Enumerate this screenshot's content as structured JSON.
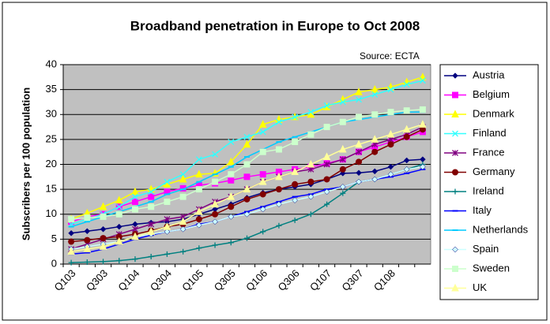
{
  "chart_data": {
    "type": "line",
    "title": "Broadband penetration in Europe to Oct 2008",
    "annotation": "Source: ECTA",
    "y_label": "Subscribers per 100 population",
    "categories": [
      "Q103",
      null,
      "Q303",
      null,
      "Q104",
      null,
      "Q304",
      null,
      "Q105",
      null,
      "Q305",
      null,
      "Q106",
      null,
      "Q306",
      null,
      "Q107",
      null,
      "Q307",
      null,
      "Q108",
      null,
      null
    ],
    "ylim": [
      0,
      40
    ],
    "yticks": [
      0,
      5,
      10,
      15,
      20,
      25,
      30,
      35,
      40
    ],
    "grid": true,
    "legend": "right",
    "series": [
      {
        "name": "Austria",
        "color": "#000080",
        "marker": "diamond",
        "values": [
          6.2,
          6.6,
          7.0,
          7.5,
          8.0,
          8.3,
          8.5,
          9.0,
          10.0,
          11.0,
          12.0,
          13.3,
          14.3,
          15.0,
          15.5,
          16.0,
          17.0,
          18.2,
          18.3,
          18.6,
          19.5,
          20.8,
          21.0
        ]
      },
      {
        "name": "Belgium",
        "color": "#ff00ff",
        "marker": "square",
        "values": [
          8.5,
          9.5,
          10.0,
          11.5,
          12.5,
          13.5,
          14.5,
          15.2,
          15.8,
          16.2,
          16.8,
          17.5,
          18.0,
          18.5,
          19.0,
          19.5,
          20.2,
          21.0,
          22.5,
          23.5,
          24.5,
          25.5,
          26.5
        ]
      },
      {
        "name": "Denmark",
        "color": "#ffff00",
        "marker": "triangle",
        "values": [
          9.0,
          10.2,
          11.5,
          12.8,
          14.5,
          15.0,
          16.0,
          17.0,
          18.0,
          18.2,
          20.5,
          24.0,
          28.0,
          29.0,
          29.5,
          30.0,
          31.5,
          33.0,
          34.5,
          35.0,
          35.5,
          36.5,
          37.5
        ]
      },
      {
        "name": "Finland",
        "color": "#33ffff",
        "marker": "x",
        "values": [
          8.0,
          9.0,
          10.0,
          11.5,
          13.5,
          14.5,
          16.5,
          18.0,
          21.0,
          22.0,
          24.5,
          25.5,
          26.5,
          28.5,
          29.5,
          30.5,
          31.8,
          32.5,
          33.0,
          34.0,
          35.0,
          36.0,
          36.8
        ]
      },
      {
        "name": "France",
        "color": "#800080",
        "marker": "star",
        "values": [
          3.0,
          4.0,
          5.0,
          6.0,
          7.0,
          8.0,
          9.0,
          9.5,
          11.0,
          12.5,
          13.5,
          15.0,
          16.5,
          17.5,
          18.5,
          19.0,
          20.0,
          21.0,
          22.5,
          24.0,
          25.0,
          26.0,
          27.5
        ]
      },
      {
        "name": "Germany",
        "color": "#800000",
        "marker": "circle",
        "values": [
          4.5,
          4.8,
          5.2,
          5.5,
          6.0,
          6.7,
          7.5,
          8.0,
          9.0,
          10.0,
          11.5,
          13.0,
          14.0,
          15.0,
          16.0,
          16.5,
          17.0,
          19.0,
          20.5,
          22.5,
          24.0,
          25.5,
          27.0
        ]
      },
      {
        "name": "Ireland",
        "color": "#008080",
        "marker": "plus",
        "values": [
          0.3,
          0.4,
          0.5,
          0.7,
          1.0,
          1.5,
          2.0,
          2.5,
          3.2,
          3.8,
          4.3,
          5.2,
          6.5,
          7.7,
          8.8,
          10.0,
          12.0,
          14.2,
          16.5,
          17.0,
          18.0,
          19.0,
          20.0
        ]
      },
      {
        "name": "Italy",
        "color": "#0000ff",
        "marker": "dash",
        "values": [
          2.0,
          2.3,
          3.0,
          4.0,
          5.0,
          5.8,
          6.5,
          7.0,
          8.0,
          8.5,
          9.5,
          10.5,
          11.5,
          12.5,
          13.5,
          14.0,
          15.0,
          15.5,
          16.5,
          17.0,
          17.5,
          18.2,
          19.0
        ]
      },
      {
        "name": "Netherlands",
        "color": "#00ccff",
        "marker": "dash",
        "values": [
          7.5,
          8.5,
          9.5,
          10.5,
          11.5,
          12.5,
          14.0,
          15.0,
          16.5,
          18.0,
          19.5,
          21.5,
          23.0,
          24.5,
          25.5,
          26.5,
          27.5,
          28.5,
          29.0,
          29.5,
          30.0,
          30.5,
          30.5
        ]
      },
      {
        "name": "Spain",
        "color": "#ccffff",
        "marker": "diamond",
        "values": [
          3.0,
          3.5,
          4.0,
          4.5,
          5.5,
          6.0,
          6.5,
          7.0,
          7.8,
          8.5,
          9.5,
          10.0,
          11.0,
          12.0,
          12.8,
          13.5,
          14.5,
          15.5,
          16.5,
          17.0,
          18.0,
          19.0,
          19.5
        ]
      },
      {
        "name": "Sweden",
        "color": "#ccffcc",
        "marker": "square",
        "values": [
          9.0,
          9.3,
          9.5,
          10.0,
          11.0,
          11.5,
          12.5,
          13.5,
          15.0,
          16.5,
          18.0,
          20.0,
          22.5,
          23.0,
          24.5,
          26.0,
          27.5,
          28.5,
          29.5,
          30.0,
          30.5,
          30.8,
          31.0
        ]
      },
      {
        "name": "UK",
        "color": "#ffff99",
        "marker": "triangle",
        "values": [
          2.5,
          3.0,
          3.5,
          4.5,
          5.5,
          6.5,
          7.5,
          8.5,
          10.5,
          12.0,
          13.5,
          15.0,
          16.5,
          17.5,
          18.5,
          20.0,
          21.5,
          23.0,
          24.0,
          25.0,
          26.0,
          27.0,
          28.0
        ]
      }
    ]
  }
}
